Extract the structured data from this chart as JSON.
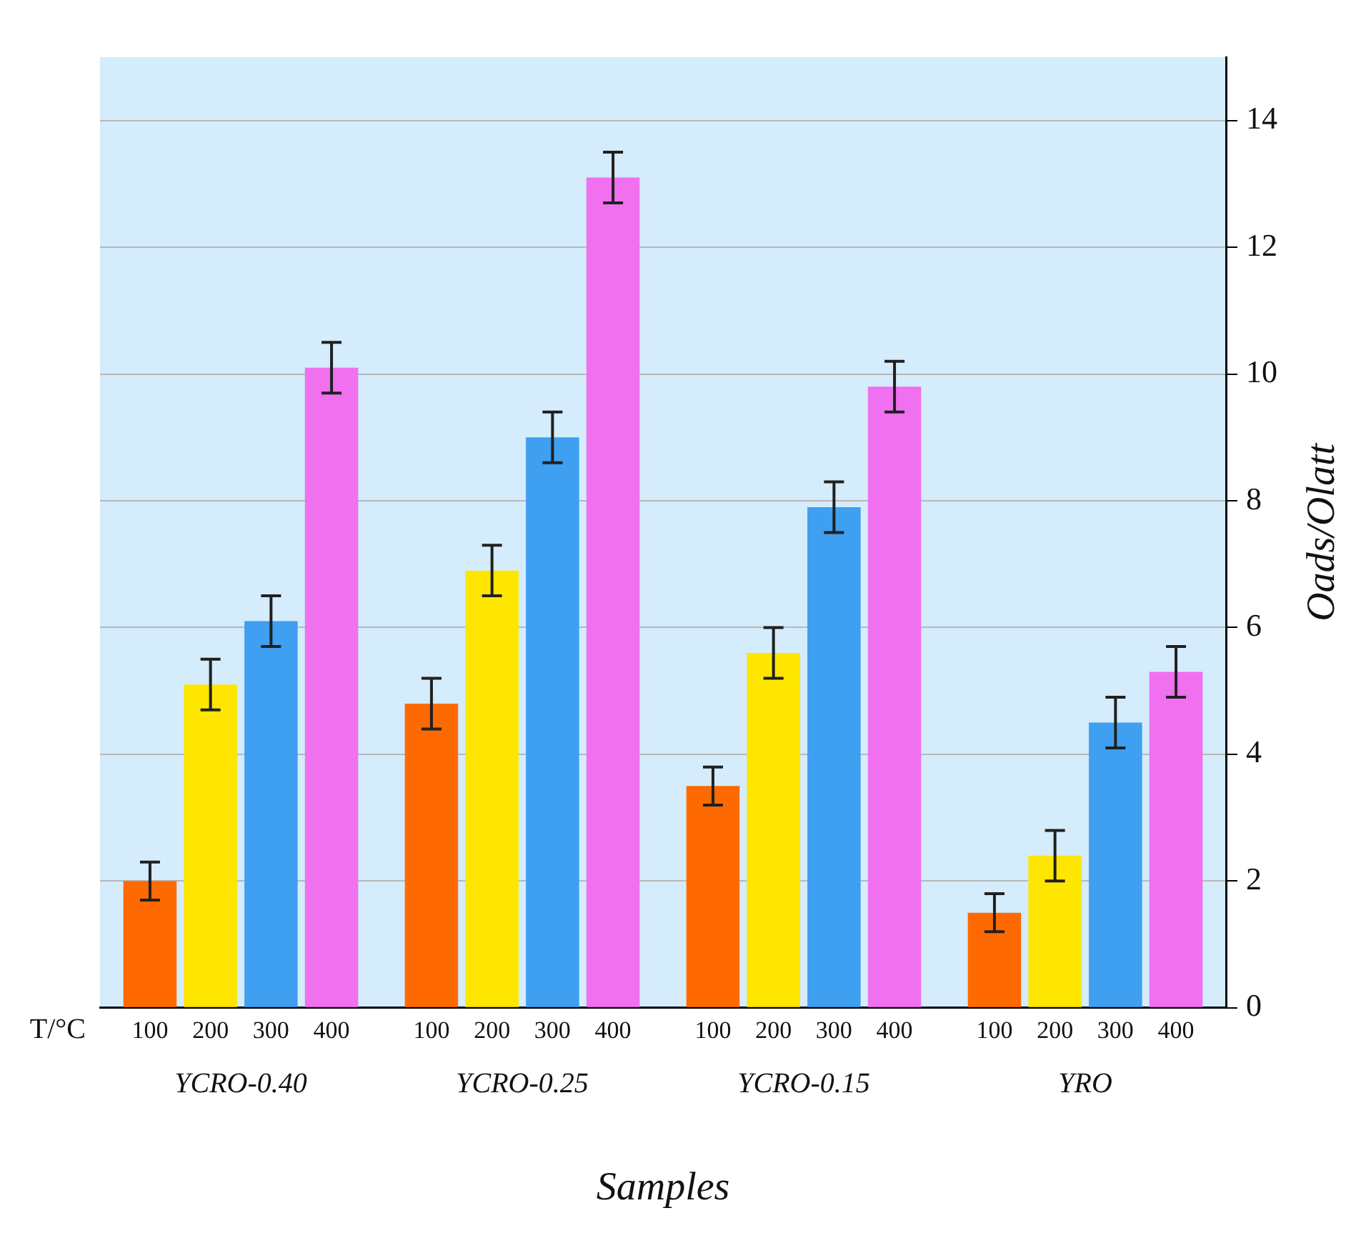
{
  "chart_data": {
    "type": "bar",
    "xlabel": "Samples",
    "ylabel": "Oads/Olatt",
    "legend_title": "T/°C",
    "categories": [
      "YCRO-0.40",
      "YCRO-0.25",
      "YCRO-0.15",
      "YRO"
    ],
    "series": [
      {
        "name": "100",
        "color": "#ff6a00",
        "values": [
          2.0,
          4.8,
          3.5,
          1.5
        ],
        "errors": [
          0.3,
          0.4,
          0.3,
          0.3
        ]
      },
      {
        "name": "200",
        "color": "#ffe600",
        "values": [
          5.1,
          6.9,
          5.6,
          2.4
        ],
        "errors": [
          0.4,
          0.4,
          0.4,
          0.4
        ]
      },
      {
        "name": "300",
        "color": "#3f9ff0",
        "values": [
          6.1,
          9.0,
          7.9,
          4.5
        ],
        "errors": [
          0.4,
          0.4,
          0.4,
          0.4
        ]
      },
      {
        "name": "400",
        "color": "#f070f0",
        "values": [
          10.1,
          13.1,
          9.8,
          5.3
        ],
        "errors": [
          0.4,
          0.4,
          0.4,
          0.4
        ]
      }
    ],
    "ylim": [
      0,
      15
    ],
    "yticks": [
      0,
      2,
      4,
      6,
      8,
      10,
      12,
      14
    ],
    "grid": "y"
  }
}
